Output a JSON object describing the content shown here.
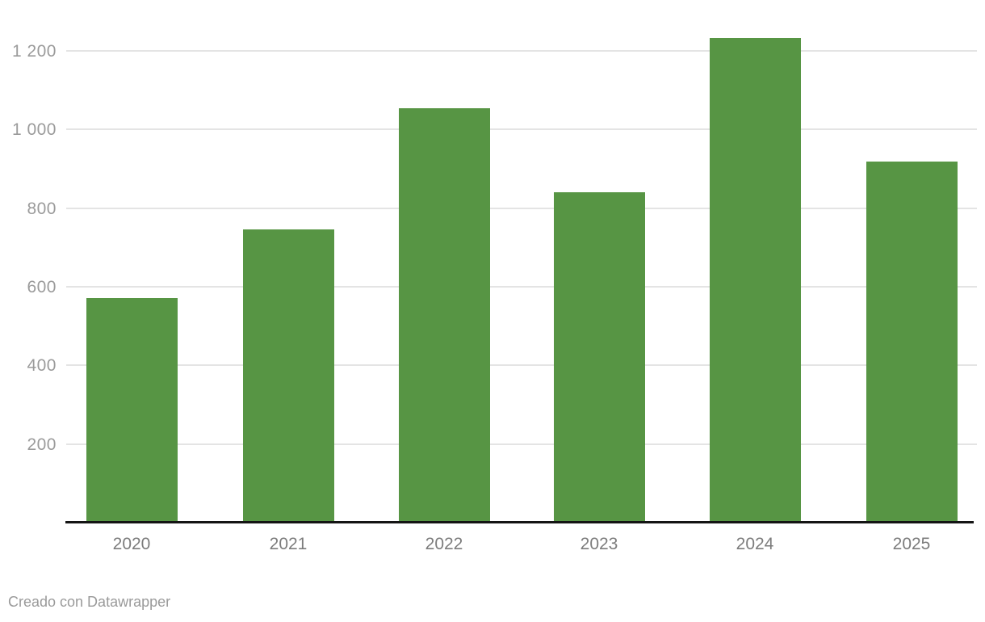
{
  "chart_data": {
    "type": "bar",
    "categories": [
      "2020",
      "2021",
      "2022",
      "2023",
      "2024",
      "2025"
    ],
    "values": [
      572,
      745,
      1055,
      840,
      1232,
      918
    ],
    "title": "",
    "xlabel": "",
    "ylabel": "",
    "ylim": [
      0,
      1260
    ],
    "yticks": [
      200,
      400,
      600,
      800,
      1000,
      1200
    ],
    "ytick_labels": [
      "200",
      "400",
      "600",
      "800",
      "1 000",
      "1 200"
    ],
    "grid": "horizontal",
    "legend": "none",
    "bar_color": "#579544",
    "grid_color": "#e4e4e4",
    "axis_line_color": "#141414",
    "y_label_color": "#9b9b9b",
    "x_label_color": "#7c7c7c",
    "footer_color": "#9a9a9a",
    "background_color": "#ffffff",
    "footer": "Creado con Datawrapper"
  }
}
